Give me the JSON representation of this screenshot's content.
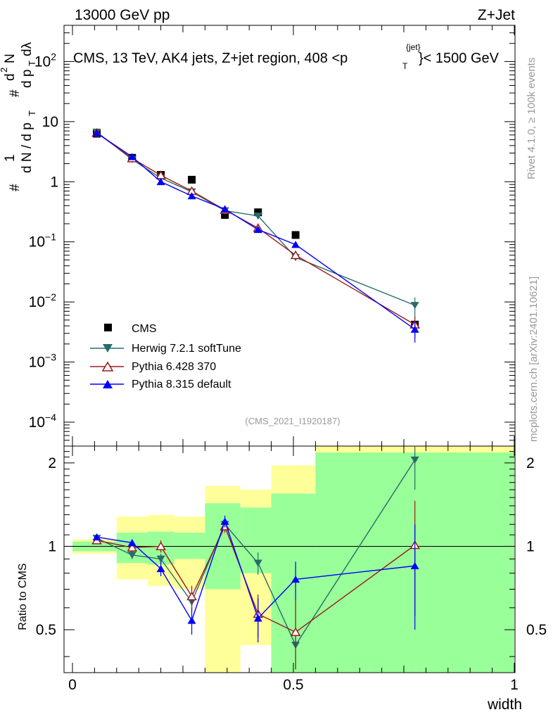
{
  "header": {
    "left": "13000 GeV pp",
    "right": "Z+Jet"
  },
  "side": {
    "rivet": "Rivet 4.1.0, ≥ 100k events",
    "mcplots": "mcplots.cern.ch [arXiv:2401.10621]"
  },
  "main": {
    "title": "CMS, 13 TeV, AK4 jets, Z+jet region, 408 <p",
    "title_sup": "{jet}",
    "title_sub": "T",
    "title_end": "}< 1500 GeV",
    "ylabel_a": "#",
    "ylabel_b": "1",
    "ylabel_c": "d N / d p",
    "ylabel_d": "T",
    "ylabel_e": "#",
    "ylabel_f": "d",
    "ylabel_g": "2",
    "ylabel_h": "N",
    "ylabel_i": "d p",
    "ylabel_j": "T",
    "ylabel_k": "dλ",
    "reference": "(CMS_2021_I1920187)",
    "y_ticks": [
      {
        "base": "10",
        "exp": "−4"
      },
      {
        "base": "10",
        "exp": "−3"
      },
      {
        "base": "10",
        "exp": "−2"
      },
      {
        "base": "10",
        "exp": "−1"
      },
      {
        "base": "1",
        "exp": ""
      },
      {
        "base": "10",
        "exp": ""
      },
      {
        "base": "10",
        "exp": "2"
      }
    ]
  },
  "ratio": {
    "ylabel": "Ratio to CMS",
    "y_ticks": [
      "0.5",
      "1",
      "2"
    ]
  },
  "xaxis": {
    "label": "width",
    "ticks": [
      "0",
      "0.5",
      "1"
    ]
  },
  "legend": [
    {
      "label": "CMS",
      "color": "#000000",
      "marker": "square"
    },
    {
      "label": "Herwig 7.2.1 softTune",
      "color": "#2a6b6b",
      "marker": "triangle-down"
    },
    {
      "label": "Pythia 6.428 370",
      "color": "#9b1b1b",
      "marker": "triangle-open"
    },
    {
      "label": "Pythia 8.315 default",
      "color": "#0000ff",
      "marker": "triangle-up"
    }
  ],
  "chart_data": {
    "type": "line",
    "title": "CMS, 13 TeV, AK4 jets, Z+jet region, 408 <p_T^{jet}< 1500 GeV",
    "xlabel": "width",
    "ylabel": "1/N dN/dλ",
    "xlim": [
      0,
      1
    ],
    "ylim": [
      4e-05,
      400
    ],
    "yscale": "log",
    "ratio_ylim": [
      0.35,
      2.3
    ],
    "ratio_ylabel": "Ratio to CMS",
    "x": [
      0.055,
      0.135,
      0.2,
      0.27,
      0.345,
      0.42,
      0.505,
      0.775
    ],
    "bin_edges": [
      0,
      0.1,
      0.17,
      0.23,
      0.3,
      0.38,
      0.45,
      0.55,
      1.0
    ],
    "series": [
      {
        "name": "CMS",
        "color": "#000000",
        "values": [
          6.3,
          2.5,
          1.3,
          1.08,
          0.28,
          0.31,
          0.13,
          0.0042
        ]
      },
      {
        "name": "Herwig 7.2.1 softTune",
        "color": "#2a6b6b",
        "values": [
          6.7,
          2.35,
          1.15,
          0.68,
          0.33,
          0.27,
          0.055,
          0.0088
        ],
        "ratio": [
          1.07,
          0.93,
          0.9,
          0.63,
          1.2,
          0.87,
          0.44,
          2.05
        ],
        "ratio_err": [
          0.02,
          0.03,
          0.04,
          0.04,
          0.06,
          0.08,
          0.2,
          0.45
        ]
      },
      {
        "name": "Pythia 6.428 370",
        "color": "#9b1b1b",
        "values": [
          6.5,
          2.45,
          1.28,
          0.7,
          0.34,
          0.17,
          0.06,
          0.0042
        ],
        "ratio": [
          1.05,
          0.99,
          1.0,
          0.66,
          1.18,
          0.57,
          0.49,
          1.01
        ],
        "ratio_err": [
          0.02,
          0.03,
          0.05,
          0.06,
          0.06,
          0.1,
          0.15,
          0.45
        ]
      },
      {
        "name": "Pythia 8.315 default",
        "color": "#0000ff",
        "values": [
          6.45,
          2.6,
          1.0,
          0.58,
          0.35,
          0.16,
          0.09,
          0.0035
        ],
        "ratio": [
          1.08,
          1.03,
          0.83,
          0.54,
          1.23,
          0.55,
          0.76,
          0.85
        ],
        "ratio_err": [
          0.02,
          0.03,
          0.05,
          0.06,
          0.06,
          0.1,
          0.12,
          0.35
        ]
      }
    ],
    "ratio_bands": {
      "green": [
        [
          0.96,
          1.04
        ],
        [
          0.87,
          1.12
        ],
        [
          0.86,
          1.13
        ],
        [
          0.9,
          1.12
        ],
        [
          0.7,
          1.43
        ],
        [
          0.8,
          1.38
        ],
        [
          0.35,
          1.55
        ],
        [
          0.35,
          2.18
        ]
      ],
      "yellow": [
        [
          0.94,
          1.06
        ],
        [
          0.76,
          1.28
        ],
        [
          0.72,
          1.3
        ],
        [
          0.7,
          1.28
        ],
        [
          0.35,
          1.65
        ],
        [
          0.44,
          1.6
        ],
        [
          0.35,
          1.96
        ],
        [
          0.35,
          2.3
        ]
      ]
    }
  }
}
